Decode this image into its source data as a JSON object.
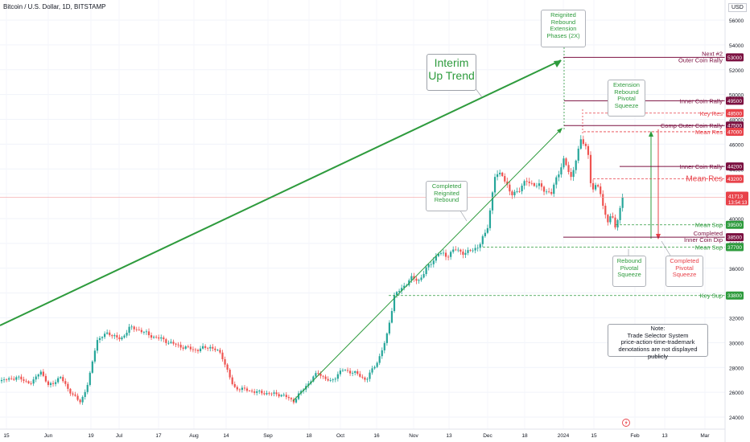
{
  "header": {
    "symbol_title": "Bitcoin / U.S. Dollar, 1D, BITSTAMP",
    "currency": "USD"
  },
  "colors": {
    "green": "#2e9b3d",
    "purple": "#7b1040",
    "red": "#e8424a",
    "up_candle": "#26a69a",
    "down_candle": "#ef5350",
    "price_tag": "#e8424a"
  },
  "chart_data": {
    "type": "candlestick",
    "ylim": [
      23000,
      57500
    ],
    "y_ticks": [
      24000,
      26000,
      28000,
      30000,
      32000,
      34000,
      36000,
      38000,
      40000,
      42000,
      44000,
      46000,
      48000,
      50000,
      52000,
      54000,
      56000
    ],
    "x_ticks": [
      "15",
      "Jun",
      "19",
      "Jul",
      "17",
      "Aug",
      "14",
      "Sep",
      "18",
      "Oct",
      "16",
      "Nov",
      "13",
      "Dec",
      "18",
      "2024",
      "15",
      "Feb",
      "13",
      "Mar"
    ],
    "last_price": {
      "value": "41713",
      "countdown": "13:54:13"
    },
    "price_path": [
      [
        0,
        26900
      ],
      [
        20,
        27200
      ],
      [
        40,
        26700
      ],
      [
        50,
        27800
      ],
      [
        60,
        26500
      ],
      [
        75,
        27200
      ],
      [
        90,
        25800
      ],
      [
        100,
        25200
      ],
      [
        110,
        26800
      ],
      [
        120,
        30200
      ],
      [
        135,
        30800
      ],
      [
        150,
        30200
      ],
      [
        160,
        31200
      ],
      [
        175,
        31000
      ],
      [
        185,
        30600
      ],
      [
        200,
        30300
      ],
      [
        215,
        29900
      ],
      [
        230,
        29600
      ],
      [
        245,
        29400
      ],
      [
        260,
        29700
      ],
      [
        275,
        29100
      ],
      [
        290,
        26400
      ],
      [
        305,
        26200
      ],
      [
        320,
        26000
      ],
      [
        335,
        25900
      ],
      [
        350,
        25800
      ],
      [
        365,
        25300
      ],
      [
        380,
        26500
      ],
      [
        395,
        27600
      ],
      [
        410,
        26800
      ],
      [
        425,
        27800
      ],
      [
        440,
        27600
      ],
      [
        455,
        27000
      ],
      [
        470,
        28600
      ],
      [
        480,
        30300
      ],
      [
        490,
        33800
      ],
      [
        500,
        34400
      ],
      [
        510,
        35200
      ],
      [
        520,
        35000
      ],
      [
        535,
        36400
      ],
      [
        545,
        37200
      ],
      [
        555,
        37000
      ],
      [
        565,
        37500
      ],
      [
        580,
        37200
      ],
      [
        595,
        37800
      ],
      [
        605,
        39000
      ],
      [
        615,
        43400
      ],
      [
        625,
        43600
      ],
      [
        635,
        41800
      ],
      [
        645,
        42400
      ],
      [
        655,
        43000
      ],
      [
        670,
        42600
      ],
      [
        685,
        42000
      ],
      [
        700,
        44800
      ],
      [
        710,
        43200
      ],
      [
        716,
        45000
      ],
      [
        722,
        46200
      ],
      [
        730,
        45800
      ],
      [
        735,
        42300
      ],
      [
        745,
        42600
      ],
      [
        750,
        40800
      ],
      [
        755,
        39700
      ],
      [
        760,
        40200
      ],
      [
        765,
        39400
      ],
      [
        770,
        40600
      ],
      [
        775,
        41713
      ]
    ],
    "levels": [
      {
        "label": "Next #2 Outer Coin Rally",
        "value": "53000",
        "price": 53000,
        "kind": "purple"
      },
      {
        "label": "Inner Coin Rally",
        "value": "49500",
        "price": 49500,
        "kind": "purple"
      },
      {
        "label": "Key Res",
        "value": "48500",
        "price": 48500,
        "kind": "red"
      },
      {
        "label": "Comp Outer Coin Rally",
        "value": "47500",
        "price": 47500,
        "kind": "purple"
      },
      {
        "label": "Mean Res",
        "value": "47000",
        "price": 47000,
        "kind": "red"
      },
      {
        "label": "Inner Coin Rally",
        "value": "44200",
        "price": 44200,
        "kind": "purple"
      },
      {
        "label": "Mean Res",
        "value": "43200",
        "price": 43200,
        "kind": "red"
      },
      {
        "label": "Mean Sup",
        "value": "39500",
        "price": 39500,
        "kind": "green"
      },
      {
        "label": "Completed Inner Coin Dip",
        "value": "38500",
        "price": 38500,
        "kind": "purple"
      },
      {
        "label": "Mean Sup",
        "value": "37700",
        "price": 37700,
        "kind": "green"
      },
      {
        "label": "Key Sup",
        "value": "33800",
        "price": 33800,
        "kind": "green"
      }
    ],
    "annotations": {
      "interim_up_trend": "Interim\nUp Trend",
      "reignited_phases": "Reignited\nRebound\nExtension\nPhases (2X)",
      "extension_squeeze": "Extension\nRebound\nPivotal\nSqueeze",
      "completed_reignited": "Completed\nReignited\nRebound",
      "rebound_squeeze": "Rebound\nPivotal\nSqueeze",
      "completed_pivotal": "Completed\nPivotal\nSqueeze",
      "note": "Note:\nTrade Selector System\nprice-action-time-trademark\ndenotations are not displayed publicly"
    }
  }
}
